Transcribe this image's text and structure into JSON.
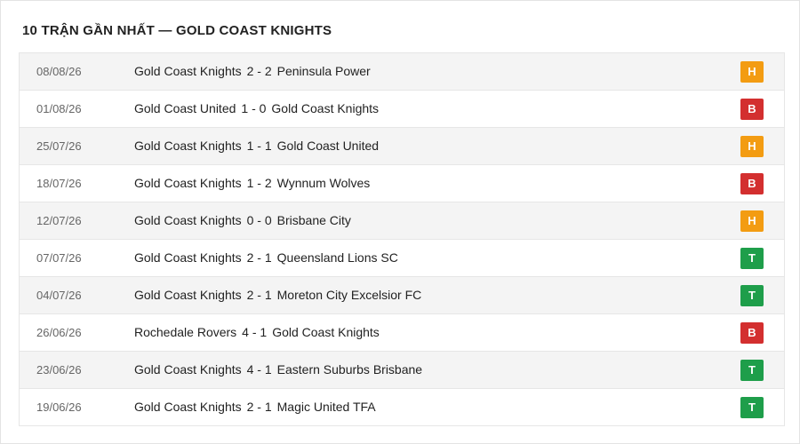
{
  "title": "10 TRẬN GẦN NHẤT — GOLD COAST KNIGHTS",
  "result_colors": {
    "H": "#f39c12",
    "B": "#d32f2f",
    "T": "#1e9e4a"
  },
  "matches": [
    {
      "date": "08/08/26",
      "home": "Gold Coast Knights",
      "score": "2 - 2",
      "away": "Peninsula Power",
      "result": "H"
    },
    {
      "date": "01/08/26",
      "home": "Gold Coast United",
      "score": "1 - 0",
      "away": "Gold Coast Knights",
      "result": "B"
    },
    {
      "date": "25/07/26",
      "home": "Gold Coast Knights",
      "score": "1 - 1",
      "away": "Gold Coast United",
      "result": "H"
    },
    {
      "date": "18/07/26",
      "home": "Gold Coast Knights",
      "score": "1 - 2",
      "away": "Wynnum Wolves",
      "result": "B"
    },
    {
      "date": "12/07/26",
      "home": "Gold Coast Knights",
      "score": "0 - 0",
      "away": "Brisbane City",
      "result": "H"
    },
    {
      "date": "07/07/26",
      "home": "Gold Coast Knights",
      "score": "2 - 1",
      "away": "Queensland Lions SC",
      "result": "T"
    },
    {
      "date": "04/07/26",
      "home": "Gold Coast Knights",
      "score": "2 - 1",
      "away": "Moreton City Excelsior FC",
      "result": "T"
    },
    {
      "date": "26/06/26",
      "home": "Rochedale Rovers",
      "score": "4 - 1",
      "away": "Gold Coast Knights",
      "result": "B"
    },
    {
      "date": "23/06/26",
      "home": "Gold Coast Knights",
      "score": "4 - 1",
      "away": "Eastern Suburbs Brisbane",
      "result": "T"
    },
    {
      "date": "19/06/26",
      "home": "Gold Coast Knights",
      "score": "2 - 1",
      "away": "Magic United TFA",
      "result": "T"
    }
  ]
}
